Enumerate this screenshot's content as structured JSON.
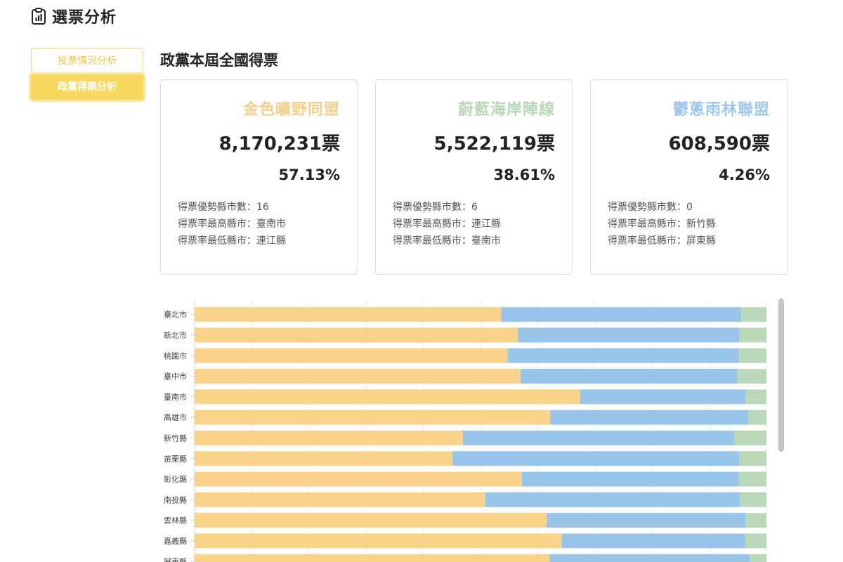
{
  "header": {
    "title": "選票分析",
    "icon": "clipboard-chart-icon"
  },
  "nav": {
    "items": [
      {
        "label": "投票情況分析",
        "active": false
      },
      {
        "label": "政黨得票分析",
        "active": true
      }
    ]
  },
  "section": {
    "title": "政黨本屆全國得票"
  },
  "parties": [
    {
      "name": "金色曠野同盟",
      "color": "#f9d38a",
      "votes": "8,170,231票",
      "pct": "57.13%",
      "advantage_label": "得票優勢縣市數：",
      "advantage": "16",
      "highest_label": "得票率最高縣市：",
      "highest": "臺南市",
      "lowest_label": "得票率最低縣市：",
      "lowest": "連江縣"
    },
    {
      "name": "蔚藍海岸陣線",
      "color": "#b7d7b5",
      "votes": "5,522,119票",
      "pct": "38.61%",
      "advantage_label": "得票優勢縣市數：",
      "advantage": "6",
      "highest_label": "得票率最高縣市：",
      "highest": "連江縣",
      "lowest_label": "得票率最低縣市：",
      "lowest": "臺南市"
    },
    {
      "name": "鬱蔥雨林聯盟",
      "color": "#9ec7e9",
      "votes": "608,590票",
      "pct": "4.26%",
      "advantage_label": "得票優勢縣市數：",
      "advantage": "0",
      "highest_label": "得票率最高縣市：",
      "highest": "新竹縣",
      "lowest_label": "得票率最低縣市：",
      "lowest": "屏東縣"
    }
  ],
  "chart_data": {
    "type": "bar",
    "orientation": "horizontal",
    "stacked": true,
    "xlim": [
      0,
      100
    ],
    "grid": true,
    "categories": [
      "臺北市",
      "新北市",
      "桃園市",
      "臺中市",
      "臺南市",
      "高雄市",
      "新竹縣",
      "苗栗縣",
      "彰化縣",
      "南投縣",
      "雲林縣",
      "嘉義縣",
      "屏東縣"
    ],
    "series": [
      {
        "color": "#f9d38a",
        "values": [
          53.6,
          56.5,
          54.7,
          57.0,
          67.4,
          62.2,
          46.9,
          45.1,
          57.2,
          50.8,
          61.6,
          64.2,
          62.1
        ]
      },
      {
        "color": "#99c5ea",
        "values": [
          42.0,
          38.8,
          40.5,
          37.9,
          29.0,
          34.6,
          47.5,
          50.2,
          38.0,
          44.6,
          34.8,
          32.1,
          35.0
        ]
      },
      {
        "color": "#b9d9b8",
        "values": [
          4.4,
          4.7,
          4.8,
          5.1,
          3.6,
          3.2,
          5.6,
          4.7,
          4.8,
          4.6,
          3.6,
          3.7,
          2.9
        ]
      }
    ]
  }
}
